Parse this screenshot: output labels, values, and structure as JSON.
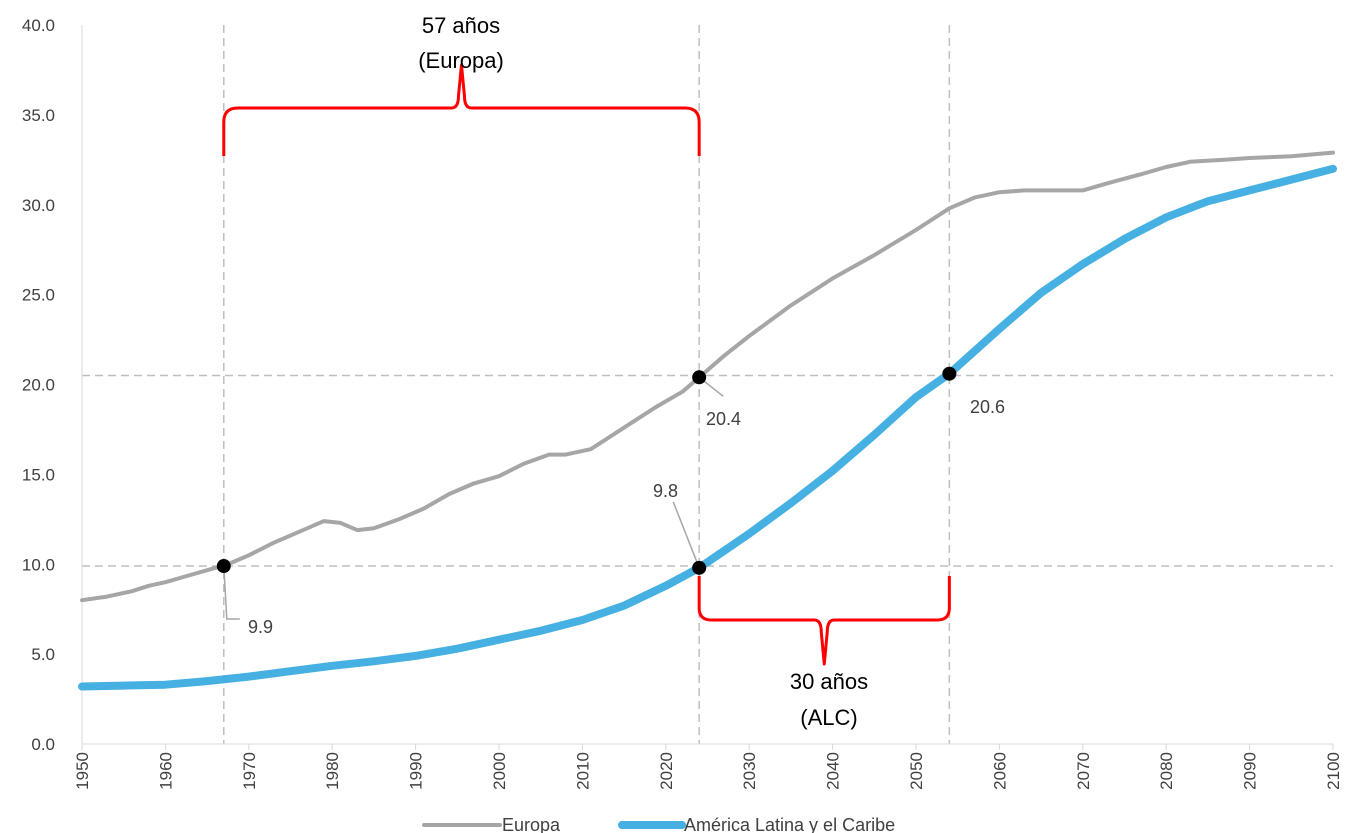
{
  "chart_data": {
    "type": "line",
    "xlim": [
      1950,
      2100
    ],
    "ylim": [
      0,
      40
    ],
    "x_ticks": [
      "1950",
      "1960",
      "1970",
      "1980",
      "1990",
      "2000",
      "2010",
      "2020",
      "2030",
      "2040",
      "2050",
      "2060",
      "2070",
      "2080",
      "2090",
      "2100"
    ],
    "y_ticks": [
      "0.0",
      "5.0",
      "10.0",
      "15.0",
      "20.0",
      "25.0",
      "30.0",
      "35.0",
      "40.0"
    ],
    "x_tick_rotation": -90,
    "grid": false,
    "legend_position": "bottom",
    "series": [
      {
        "name": "Europa",
        "color": "#a6a6a6",
        "x": [
          1950,
          1953,
          1956,
          1958,
          1960,
          1963,
          1966,
          1967,
          1970,
          1973,
          1976,
          1979,
          1981,
          1983,
          1985,
          1988,
          1991,
          1994,
          1997,
          2000,
          2003,
          2006,
          2008,
          2011,
          2013,
          2016,
          2019,
          2022,
          2024,
          2027,
          2030,
          2035,
          2040,
          2045,
          2050,
          2054,
          2057,
          2060,
          2063,
          2066,
          2070,
          2073,
          2077,
          2080,
          2083,
          2087,
          2090,
          2095,
          2100
        ],
        "y": [
          8.0,
          8.2,
          8.5,
          8.8,
          9.0,
          9.4,
          9.8,
          9.9,
          10.5,
          11.2,
          11.8,
          12.4,
          12.3,
          11.9,
          12.0,
          12.5,
          13.1,
          13.9,
          14.5,
          14.9,
          15.6,
          16.1,
          16.1,
          16.4,
          17.0,
          17.9,
          18.8,
          19.6,
          20.4,
          21.6,
          22.7,
          24.4,
          25.9,
          27.2,
          28.6,
          29.8,
          30.4,
          30.7,
          30.8,
          30.8,
          30.8,
          31.2,
          31.7,
          32.1,
          32.4,
          32.5,
          32.6,
          32.7,
          32.9
        ]
      },
      {
        "name": "América Latina y el Caribe",
        "color": "#45b0e1",
        "x": [
          1950,
          1955,
          1960,
          1965,
          1970,
          1975,
          1980,
          1985,
          1990,
          1995,
          2000,
          2005,
          2010,
          2015,
          2020,
          2024,
          2030,
          2035,
          2040,
          2045,
          2050,
          2054,
          2060,
          2065,
          2070,
          2075,
          2080,
          2085,
          2090,
          2095,
          2100
        ],
        "y": [
          3.2,
          3.25,
          3.3,
          3.5,
          3.75,
          4.05,
          4.35,
          4.6,
          4.9,
          5.3,
          5.8,
          6.3,
          6.9,
          7.7,
          8.8,
          9.8,
          11.7,
          13.4,
          15.2,
          17.2,
          19.3,
          20.6,
          23.1,
          25.1,
          26.7,
          28.1,
          29.3,
          30.2,
          30.8,
          31.4,
          32.0
        ]
      }
    ],
    "reference_lines": {
      "vertical_x": [
        1967,
        2024,
        2054
      ],
      "horizontal_y": [
        9.9,
        20.5
      ]
    },
    "markers": [
      {
        "x": 1967,
        "y": 9.9,
        "label": "9.9"
      },
      {
        "x": 2024,
        "y": 20.4,
        "label": "20.4"
      },
      {
        "x": 2024,
        "y": 9.8,
        "label": "9.8"
      },
      {
        "x": 2054,
        "y": 20.6,
        "label": "20.6"
      }
    ],
    "braces": [
      {
        "from_x": 1967,
        "to_x": 2024,
        "line1": "57 años",
        "line2": "(Europa)",
        "color": "#ff0000"
      },
      {
        "from_x": 2024,
        "to_x": 2054,
        "line1": "30 años",
        "line2": "(ALC)",
        "color": "#ff0000"
      }
    ]
  }
}
